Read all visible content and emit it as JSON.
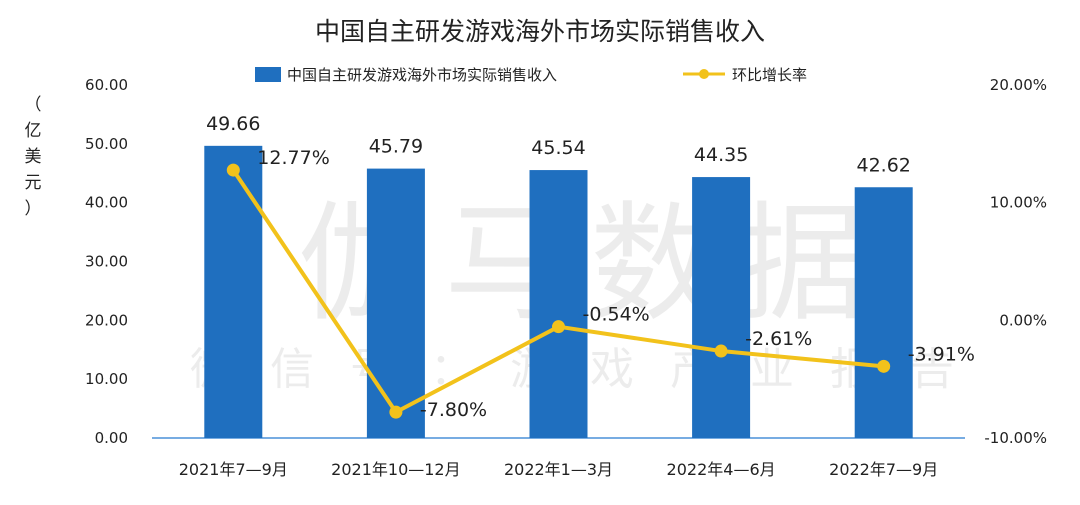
{
  "chart_data": {
    "type": "bar",
    "title": "中国自主研发游戏海外市场实际销售收入",
    "categories": [
      "2021年7—9月",
      "2021年10—12月",
      "2022年1—3月",
      "2022年4—6月",
      "2022年7—9月"
    ],
    "series": [
      {
        "name": "中国自主研发游戏海外市场实际销售收入",
        "type": "bar",
        "axis": "left",
        "values": [
          49.66,
          45.79,
          45.54,
          44.35,
          42.62
        ],
        "labels": [
          "49.66",
          "45.79",
          "45.54",
          "44.35",
          "42.62"
        ],
        "color": "#1f6fbf"
      },
      {
        "name": "环比增长率",
        "type": "line",
        "axis": "right",
        "values": [
          12.77,
          -7.8,
          -0.54,
          -2.61,
          -3.91
        ],
        "labels": [
          "12.77%",
          "-7.80%",
          "-0.54%",
          "-2.61%",
          "-3.91%"
        ],
        "color": "#f2c21b"
      }
    ],
    "y_left": {
      "label_chars": [
        "（",
        "亿",
        "美",
        "元",
        "）"
      ],
      "ylim": [
        0,
        60
      ],
      "ticks": [
        "0.00",
        "10.00",
        "20.00",
        "30.00",
        "40.00",
        "50.00",
        "60.00"
      ]
    },
    "y_right": {
      "ylim": [
        -10,
        20
      ],
      "ticks": [
        "-10.00%",
        "0.00%",
        "10.00%",
        "20.00%"
      ]
    },
    "legend_position": "top",
    "grid": false
  },
  "watermark": {
    "main": "伽马数据",
    "sub": "微信号：游戏产业报告"
  }
}
